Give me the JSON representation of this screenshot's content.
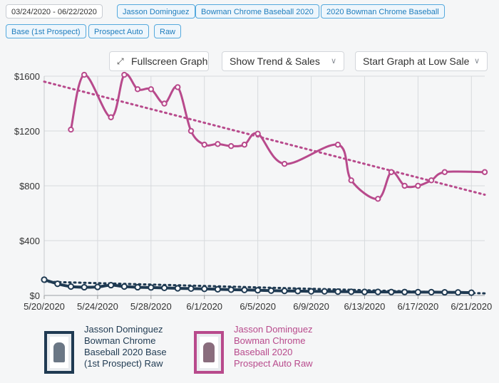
{
  "filters": {
    "date_range": "03/24/2020 - 06/22/2020",
    "chips": [
      "Jasson Dominguez",
      "Bowman Chrome Baseball 2020",
      "2020 Bowman Chrome Baseball",
      "Base (1st Prospect)",
      "Prospect Auto",
      "Raw"
    ]
  },
  "controls": {
    "fullscreen_label": "Fullscreen Graph",
    "fullscreen_icon": "expand-icon",
    "trend_select": "Show Trend & Sales",
    "start_select": "Start Graph at Low Sale"
  },
  "colors": {
    "pink": "#b84a8c",
    "navy": "#1f3a52",
    "chip_border": "#55a9dd"
  },
  "chart_data": {
    "type": "line",
    "x_tick_labels": [
      "5/20/2020",
      "5/24/2020",
      "5/28/2020",
      "6/1/2020",
      "6/5/2020",
      "6/9/2020",
      "6/13/2020",
      "6/17/2020",
      "6/21/2020"
    ],
    "xlim": [
      "2020-05-20",
      "2020-06-22"
    ],
    "y_tick_labels": [
      "$0",
      "$400",
      "$800",
      "$1200",
      "$1600"
    ],
    "ylim": [
      0,
      1600
    ],
    "grid": true,
    "series": [
      {
        "name": "Jasson Dominguez Bowman Chrome Baseball 2020 Prospect Auto Raw",
        "color": "#b84a8c",
        "points": [
          [
            "2020-05-22",
            1210
          ],
          [
            "2020-05-23",
            1610
          ],
          [
            "2020-05-25",
            1300
          ],
          [
            "2020-05-26",
            1610
          ],
          [
            "2020-05-27",
            1505
          ],
          [
            "2020-05-28",
            1505
          ],
          [
            "2020-05-29",
            1400
          ],
          [
            "2020-05-30",
            1520
          ],
          [
            "2020-05-31",
            1200
          ],
          [
            "2020-06-01",
            1100
          ],
          [
            "2020-06-02",
            1105
          ],
          [
            "2020-06-03",
            1090
          ],
          [
            "2020-06-04",
            1100
          ],
          [
            "2020-06-05",
            1180
          ],
          [
            "2020-06-07",
            960
          ],
          [
            "2020-06-11",
            1100
          ],
          [
            "2020-06-12",
            840
          ],
          [
            "2020-06-14",
            705
          ],
          [
            "2020-06-15",
            900
          ],
          [
            "2020-06-16",
            800
          ],
          [
            "2020-06-17",
            800
          ],
          [
            "2020-06-18",
            840
          ],
          [
            "2020-06-19",
            900
          ],
          [
            "2020-06-22",
            900
          ]
        ],
        "trend": [
          [
            "2020-05-20",
            1560
          ],
          [
            "2020-06-22",
            735
          ]
        ]
      },
      {
        "name": "Jasson Dominguez Bowman Chrome Baseball 2020 Base (1st Prospect) Raw",
        "color": "#1f3a52",
        "points": [
          [
            "2020-05-20",
            115
          ],
          [
            "2020-05-21",
            85
          ],
          [
            "2020-05-22",
            65
          ],
          [
            "2020-05-23",
            60
          ],
          [
            "2020-05-24",
            62
          ],
          [
            "2020-05-25",
            75
          ],
          [
            "2020-05-26",
            65
          ],
          [
            "2020-05-27",
            60
          ],
          [
            "2020-05-28",
            58
          ],
          [
            "2020-05-29",
            55
          ],
          [
            "2020-05-30",
            52
          ],
          [
            "2020-05-31",
            50
          ],
          [
            "2020-06-01",
            48
          ],
          [
            "2020-06-02",
            45
          ],
          [
            "2020-06-03",
            42
          ],
          [
            "2020-06-04",
            40
          ],
          [
            "2020-06-05",
            38
          ],
          [
            "2020-06-06",
            35
          ],
          [
            "2020-06-07",
            33
          ],
          [
            "2020-06-08",
            32
          ],
          [
            "2020-06-09",
            30
          ],
          [
            "2020-06-10",
            30
          ],
          [
            "2020-06-11",
            28
          ],
          [
            "2020-06-12",
            27
          ],
          [
            "2020-06-13",
            26
          ],
          [
            "2020-06-14",
            26
          ],
          [
            "2020-06-15",
            25
          ],
          [
            "2020-06-16",
            25
          ],
          [
            "2020-06-17",
            24
          ],
          [
            "2020-06-18",
            24
          ],
          [
            "2020-06-19",
            23
          ],
          [
            "2020-06-20",
            22
          ],
          [
            "2020-06-21",
            20
          ]
        ],
        "trend": [
          [
            "2020-05-20",
            100
          ],
          [
            "2020-06-22",
            15
          ]
        ]
      }
    ]
  },
  "legend": [
    {
      "lines": [
        "Jasson Dominguez",
        "Bowman Chrome",
        "Baseball 2020 Base",
        "(1st Prospect) Raw"
      ],
      "thumb_icon": "baseball-card-icon",
      "color": "#1f3a52"
    },
    {
      "lines": [
        "Jasson Dominguez",
        "Bowman Chrome",
        "Baseball 2020",
        "Prospect Auto Raw"
      ],
      "thumb_icon": "autographed-card-icon",
      "color": "#b84a8c"
    }
  ]
}
